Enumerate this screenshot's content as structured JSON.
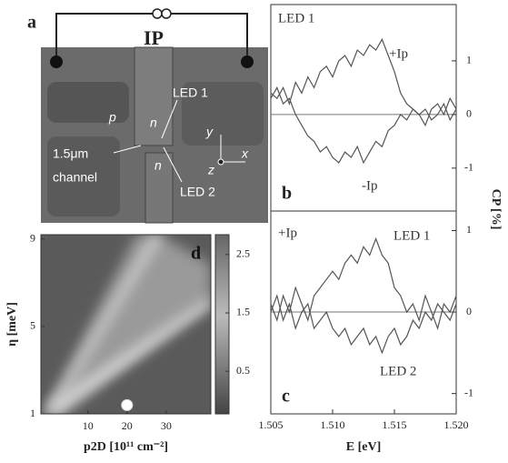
{
  "panel_a": {
    "label": "a",
    "current": "IP",
    "led1": "LED 1",
    "led2": "LED 2",
    "n1": "n",
    "n2": "n",
    "p": "p",
    "width": "1.5μm",
    "channel": "channel",
    "ax_y": "y",
    "ax_x": "x",
    "ax_z": "z"
  },
  "ylabel_shared": "CP [%]",
  "chart_data": [
    {
      "type": "line",
      "label": "b",
      "annotation": "LED 1",
      "x": [
        1.505,
        1.5055,
        1.506,
        1.5065,
        1.507,
        1.5075,
        1.508,
        1.5085,
        1.509,
        1.5095,
        1.51,
        1.5105,
        1.511,
        1.5115,
        1.512,
        1.5125,
        1.513,
        1.5135,
        1.514,
        1.5145,
        1.515,
        1.5155,
        1.516,
        1.5165,
        1.517,
        1.5175,
        1.518,
        1.5185,
        1.519,
        1.5195,
        1.52
      ],
      "series": [
        {
          "name": "+Ip",
          "color": "#555555",
          "values": [
            0.4,
            0.3,
            0.5,
            0.2,
            0.6,
            0.4,
            0.7,
            0.5,
            0.8,
            0.9,
            0.7,
            1.0,
            1.1,
            0.9,
            1.2,
            1.1,
            1.3,
            1.2,
            1.4,
            1.1,
            0.8,
            0.4,
            0.2,
            0.1,
            0.0,
            0.1,
            -0.1,
            0.0,
            0.2,
            -0.1,
            0.1
          ]
        },
        {
          "name": "-Ip",
          "color": "#555555",
          "values": [
            0.3,
            0.5,
            0.2,
            0.3,
            0.0,
            -0.2,
            -0.4,
            -0.5,
            -0.7,
            -0.6,
            -0.8,
            -0.9,
            -0.7,
            -0.8,
            -0.6,
            -0.9,
            -0.7,
            -0.5,
            -0.6,
            -0.3,
            -0.2,
            0.0,
            -0.1,
            0.1,
            0.0,
            -0.2,
            0.1,
            0.2,
            0.0,
            0.3,
            0.1
          ]
        }
      ],
      "xlim": [
        1.505,
        1.52
      ],
      "ylim": [
        -1.8,
        2.05
      ],
      "yticks": [
        -1,
        0,
        1
      ],
      "zero_line": true
    },
    {
      "type": "line",
      "label": "c",
      "annotation": "+Ip",
      "xlabel": "E [eV]",
      "x": [
        1.505,
        1.5055,
        1.506,
        1.5065,
        1.507,
        1.5075,
        1.508,
        1.5085,
        1.509,
        1.5095,
        1.51,
        1.5105,
        1.511,
        1.5115,
        1.512,
        1.5125,
        1.513,
        1.5135,
        1.514,
        1.5145,
        1.515,
        1.5155,
        1.516,
        1.5165,
        1.517,
        1.5175,
        1.518,
        1.5185,
        1.519,
        1.5195,
        1.52
      ],
      "series": [
        {
          "name": "LED 1",
          "color": "#555555",
          "values": [
            0.1,
            -0.1,
            0.2,
            0.0,
            0.3,
            0.1,
            -0.1,
            0.2,
            0.3,
            0.4,
            0.5,
            0.4,
            0.6,
            0.7,
            0.6,
            0.8,
            0.7,
            0.9,
            0.7,
            0.6,
            0.3,
            0.2,
            0.0,
            0.1,
            -0.1,
            0.2,
            0.0,
            -0.2,
            0.1,
            0.0,
            0.2
          ]
        },
        {
          "name": "LED 2",
          "color": "#555555",
          "values": [
            0.0,
            0.2,
            -0.1,
            0.1,
            -0.2,
            0.0,
            0.1,
            -0.2,
            -0.1,
            0.0,
            -0.2,
            -0.3,
            -0.2,
            -0.4,
            -0.3,
            -0.2,
            -0.4,
            -0.3,
            -0.5,
            -0.3,
            -0.2,
            -0.4,
            -0.3,
            -0.1,
            -0.2,
            0.0,
            -0.1,
            0.1,
            0.0,
            -0.1,
            0.1
          ]
        }
      ],
      "xlim": [
        1.505,
        1.52
      ],
      "ylim": [
        -1.25,
        1.24
      ],
      "yticks": [
        -1,
        0,
        1
      ],
      "xticks": [
        1.505,
        {
          "value": 1.51,
          "label": "1.510"
        },
        1.515,
        {
          "value": 1.52,
          "label": "1.520"
        }
      ],
      "zero_line": true
    },
    {
      "type": "heatmap",
      "label": "d",
      "xlabel": "p2D [10¹¹ cm⁻²]",
      "ylabel": "η [meV]",
      "xlim": [
        -2,
        41.4
      ],
      "ylim": [
        1,
        9.2
      ],
      "xticks": [
        10,
        20,
        30
      ],
      "yticks": [
        1,
        5,
        9
      ],
      "clim": [
        -0.23,
        2.84
      ],
      "cticks": [
        0.5,
        1.5,
        2.5
      ],
      "point": {
        "x": 20,
        "y": 1.4
      }
    }
  ]
}
